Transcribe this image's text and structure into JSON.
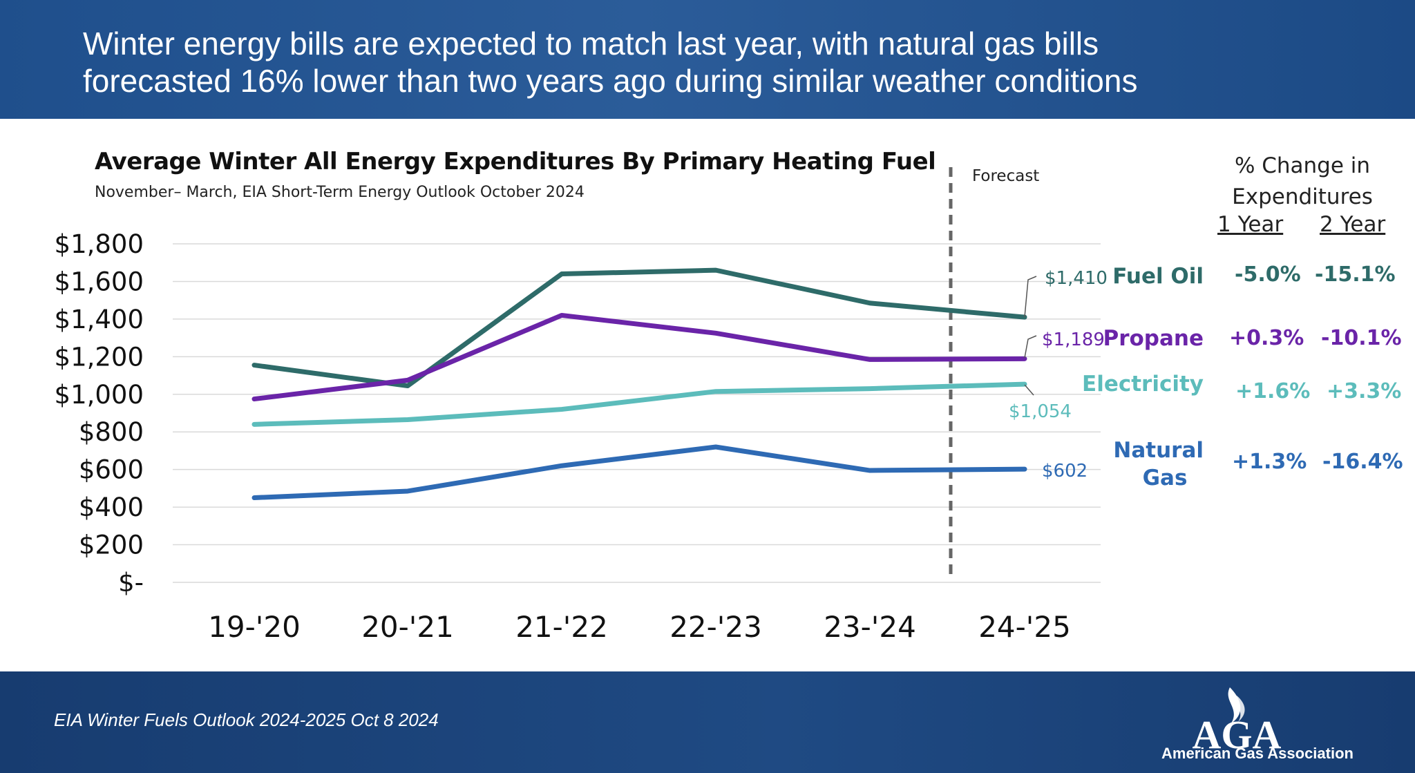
{
  "header": {
    "headline_line1": "Winter energy bills are expected to match last year, with natural gas bills",
    "headline_line2": "forecasted 16% lower than two years ago during similar weather conditions"
  },
  "chart_data": {
    "type": "line",
    "title": "Average Winter All Energy Expenditures By Primary Heating Fuel",
    "subtitle": "November– March, EIA Short-Term Energy Outlook October 2024",
    "categories": [
      "19-'20",
      "20-'21",
      "21-'22",
      "22-'23",
      "23-'24",
      "24-'25"
    ],
    "ylim": [
      0,
      1800
    ],
    "yticks": [
      {
        "value": 1800,
        "label": "$1,800"
      },
      {
        "value": 1600,
        "label": "$1,600"
      },
      {
        "value": 1400,
        "label": "$1,400"
      },
      {
        "value": 1200,
        "label": "$1,200"
      },
      {
        "value": 1000,
        "label": "$1,000"
      },
      {
        "value": 800,
        "label": "$800"
      },
      {
        "value": 600,
        "label": "$600"
      },
      {
        "value": 400,
        "label": "$400"
      },
      {
        "value": 200,
        "label": "$200"
      },
      {
        "value": 0,
        "label": "$-"
      }
    ],
    "grid": true,
    "forecast_label": "Forecast",
    "forecast_start_after": "23-'24",
    "series": [
      {
        "name": "Fuel Oil",
        "color": "#2e6b69",
        "values": [
          1155,
          1045,
          1640,
          1660,
          1485,
          1410
        ],
        "end_label": "$1,410"
      },
      {
        "name": "Propane",
        "color": "#6a24a8",
        "values": [
          975,
          1075,
          1420,
          1325,
          1185,
          1189
        ],
        "end_label": "$1,189"
      },
      {
        "name": "Electricity",
        "color": "#5cbcbb",
        "values": [
          840,
          865,
          920,
          1015,
          1030,
          1054
        ],
        "end_label": "$1,054"
      },
      {
        "name": "Natural Gas",
        "color": "#2e6ab4",
        "values": [
          450,
          485,
          620,
          720,
          595,
          602
        ],
        "end_label": "$602"
      }
    ]
  },
  "change_table": {
    "heading_line1": "% Change in",
    "heading_line2": "Expenditures",
    "col_1yr": "1 Year",
    "col_2yr": "2 Year",
    "rows": [
      {
        "fuel": "Fuel Oil",
        "one_year": "-5.0%",
        "two_year": "-15.1%",
        "color": "#2e6b69"
      },
      {
        "fuel": "Propane",
        "one_year": "+0.3%",
        "two_year": "-10.1%",
        "color": "#6a24a8"
      },
      {
        "fuel": "Electricity",
        "one_year": "+1.6%",
        "two_year": "+3.3%",
        "color": "#5cbcbb"
      },
      {
        "fuel_line1": "Natural",
        "fuel_line2": "Gas",
        "one_year": "+1.3%",
        "two_year": "-16.4%",
        "color": "#2e6ab4"
      }
    ]
  },
  "footer": {
    "source": "EIA Winter Fuels Outlook 2024-2025 Oct 8 2024",
    "logo_letters": "AGA",
    "logo_text": "American Gas Association"
  }
}
